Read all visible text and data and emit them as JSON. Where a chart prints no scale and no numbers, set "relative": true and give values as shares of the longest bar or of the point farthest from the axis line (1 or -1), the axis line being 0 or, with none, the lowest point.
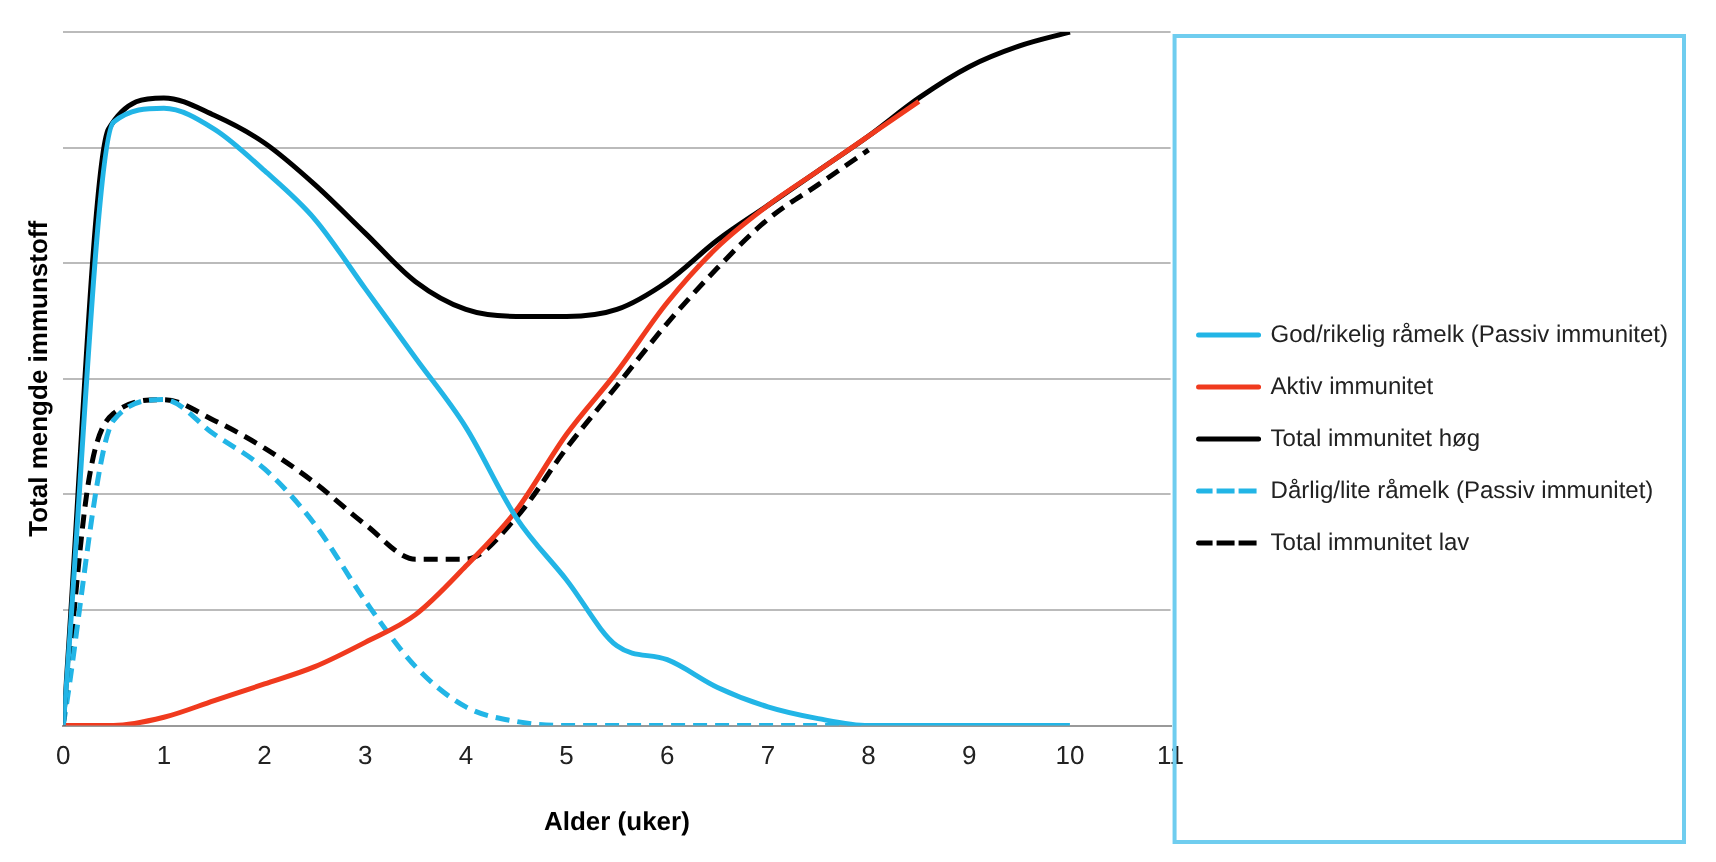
{
  "chart_data": {
    "type": "line",
    "relative": true,
    "xlabel": "Alder (uker)",
    "ylabel": "Total mengde immunstoff",
    "xlim": [
      0,
      11
    ],
    "xticks": [
      0,
      1,
      2,
      3,
      4,
      5,
      6,
      7,
      8,
      9,
      10,
      11
    ],
    "grid": "y",
    "legend": "right",
    "tick_labels": "x",
    "marker": "none",
    "series": [
      {
        "name": "God/rikelig råmelk (Passiv immunitet)",
        "color": "#22b5e6",
        "line_style": "solid",
        "x": [
          0,
          0.5,
          1,
          1.5,
          2,
          2.5,
          3,
          3.5,
          4,
          4.5,
          5,
          5.5,
          6,
          6.5,
          7,
          7.5,
          8,
          9,
          10
        ],
        "values": [
          0,
          0.87,
          0.89,
          0.86,
          0.8,
          0.73,
          0.63,
          0.53,
          0.43,
          0.3,
          0.21,
          0.115,
          0.095,
          0.055,
          0.027,
          0.01,
          0,
          0,
          0
        ]
      },
      {
        "name": "Aktiv immunitet",
        "color": "#f03a1e",
        "line_style": "solid",
        "x": [
          0,
          0.5,
          1,
          1.5,
          2,
          2.5,
          3,
          3.5,
          4,
          4.5,
          5,
          5.5,
          6,
          6.5,
          7,
          7.5,
          8,
          8.5
        ],
        "values": [
          0,
          0,
          0.012,
          0.036,
          0.06,
          0.085,
          0.12,
          0.16,
          0.23,
          0.31,
          0.42,
          0.51,
          0.61,
          0.69,
          0.75,
          0.8,
          0.85,
          0.9
        ]
      },
      {
        "name": "Total immunitet høg",
        "color": "#000000",
        "line_style": "solid",
        "x": [
          0,
          0.45,
          1,
          1.5,
          2,
          2.5,
          3,
          3.5,
          4,
          4.5,
          5,
          5.5,
          6,
          6.5,
          7,
          7.5,
          8,
          8.5,
          9,
          9.5,
          10
        ],
        "values": [
          0,
          0.86,
          0.905,
          0.88,
          0.84,
          0.78,
          0.71,
          0.64,
          0.6,
          0.59,
          0.59,
          0.6,
          0.64,
          0.7,
          0.75,
          0.8,
          0.85,
          0.905,
          0.95,
          0.98,
          1
        ]
      },
      {
        "name": "Dårlig/lite råmelk (Passiv immunitet)",
        "color": "#22b5e6",
        "line_style": "dashed",
        "x": [
          0,
          0.5,
          1,
          1.5,
          2,
          2.5,
          3,
          3.5,
          4,
          4.5,
          5,
          6,
          7,
          8
        ],
        "values": [
          0,
          0.44,
          0.47,
          0.42,
          0.37,
          0.29,
          0.18,
          0.085,
          0.027,
          0.006,
          0,
          0,
          0,
          0
        ]
      },
      {
        "name": "Total immunitet lav",
        "color": "#000000",
        "line_style": "dashed",
        "x": [
          0,
          0.25,
          0.5,
          1,
          1.5,
          2,
          2.5,
          3,
          3.5,
          4,
          4.5,
          5,
          5.5,
          6,
          6.5,
          7,
          7.5,
          8
        ],
        "values": [
          0,
          0.35,
          0.45,
          0.47,
          0.44,
          0.4,
          0.35,
          0.29,
          0.24,
          0.24,
          0.3,
          0.4,
          0.49,
          0.58,
          0.66,
          0.73,
          0.78,
          0.83
        ]
      }
    ]
  }
}
